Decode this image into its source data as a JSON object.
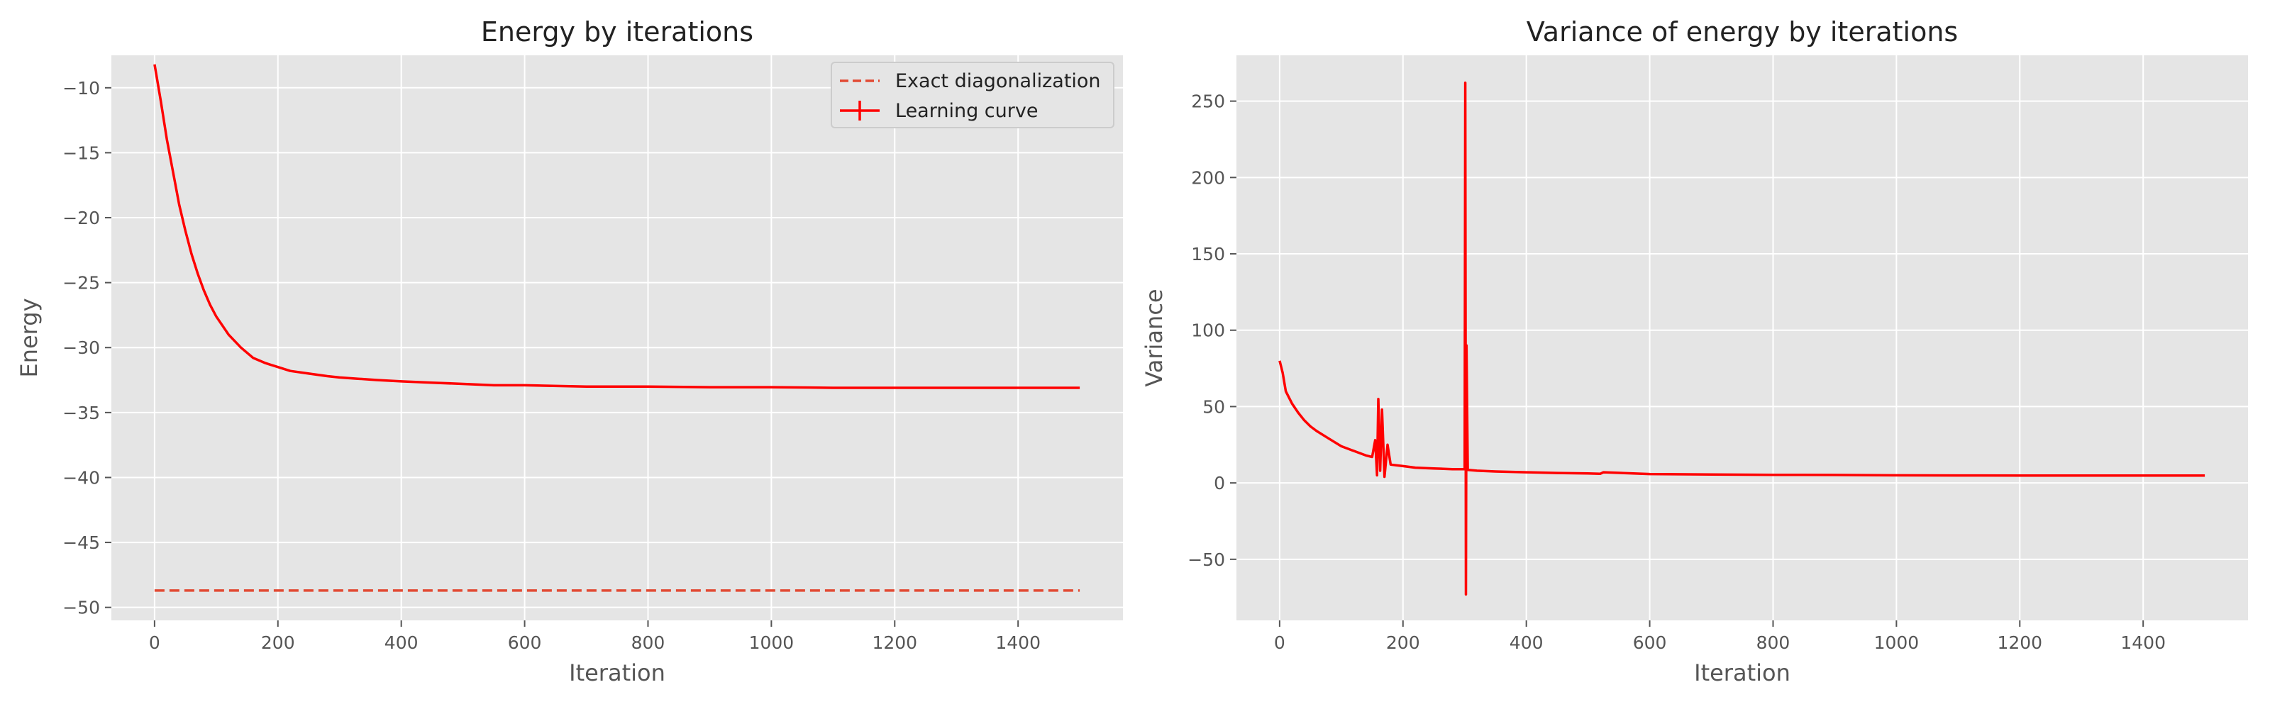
{
  "chart_data": [
    {
      "type": "line",
      "title": "Energy by iterations",
      "xlabel": "Iteration",
      "ylabel": "Energy",
      "xlim": [
        -70,
        1570
      ],
      "ylim": [
        -51,
        -7.5
      ],
      "xticks": [
        0,
        200,
        400,
        600,
        800,
        1000,
        1200,
        1400
      ],
      "yticks": [
        -10,
        -15,
        -20,
        -25,
        -30,
        -35,
        -40,
        -45,
        -50
      ],
      "xtick_labels": [
        "0",
        "200",
        "400",
        "600",
        "800",
        "1000",
        "1200",
        "1400"
      ],
      "ytick_labels": [
        "−10",
        "−15",
        "−20",
        "−25",
        "−30",
        "−35",
        "−40",
        "−45",
        "−50"
      ],
      "grid": true,
      "legend_position": "top-right",
      "series": [
        {
          "name": "Exact diagonalization",
          "style": "dashed",
          "color": "#e24a33",
          "x": [
            0,
            1500
          ],
          "y": [
            -48.7,
            -48.7
          ]
        },
        {
          "name": "Learning curve",
          "style": "solid",
          "color": "#ff0000",
          "x": [
            0,
            10,
            20,
            30,
            40,
            50,
            60,
            70,
            80,
            90,
            100,
            120,
            140,
            160,
            180,
            200,
            220,
            250,
            280,
            300,
            330,
            360,
            400,
            450,
            500,
            550,
            600,
            700,
            800,
            900,
            1000,
            1100,
            1200,
            1300,
            1400,
            1500
          ],
          "y": [
            -8.2,
            -11,
            -14,
            -16.5,
            -19,
            -21,
            -22.8,
            -24.3,
            -25.6,
            -26.7,
            -27.6,
            -29,
            -30,
            -30.8,
            -31.2,
            -31.5,
            -31.8,
            -32,
            -32.2,
            -32.3,
            -32.4,
            -32.5,
            -32.6,
            -32.7,
            -32.8,
            -32.9,
            -32.9,
            -33,
            -33,
            -33.05,
            -33.05,
            -33.1,
            -33.1,
            -33.1,
            -33.1,
            -33.1
          ]
        }
      ]
    },
    {
      "type": "line",
      "title": "Variance of energy by iterations",
      "xlabel": "Iteration",
      "ylabel": "Variance",
      "xlim": [
        -70,
        1570
      ],
      "ylim": [
        -90,
        280
      ],
      "xticks": [
        0,
        200,
        400,
        600,
        800,
        1000,
        1200,
        1400
      ],
      "yticks": [
        250,
        200,
        150,
        100,
        50,
        0,
        -50
      ],
      "xtick_labels": [
        "0",
        "200",
        "400",
        "600",
        "800",
        "1000",
        "1200",
        "1400"
      ],
      "ytick_labels": [
        "250",
        "200",
        "150",
        "100",
        "50",
        "0",
        "−50"
      ],
      "grid": true,
      "series": [
        {
          "name": "",
          "style": "solid",
          "color": "#ff0000",
          "x": [
            0,
            5,
            10,
            20,
            30,
            40,
            50,
            60,
            80,
            100,
            120,
            140,
            150,
            155,
            158,
            160,
            163,
            166,
            170,
            175,
            180,
            200,
            220,
            250,
            280,
            300,
            301,
            302,
            303,
            305,
            320,
            350,
            400,
            450,
            500,
            520,
            525,
            600,
            700,
            800,
            900,
            1000,
            1100,
            1200,
            1300,
            1400,
            1500
          ],
          "y": [
            80,
            72,
            60,
            52,
            46,
            41,
            37,
            34,
            29,
            24,
            21,
            18,
            17,
            28,
            5,
            55,
            8,
            48,
            4,
            25,
            12,
            11,
            10,
            9.5,
            9,
            9,
            262,
            -73,
            90,
            8.5,
            8,
            7.5,
            7,
            6.5,
            6.2,
            6,
            7,
            5.8,
            5.5,
            5.3,
            5.2,
            5,
            4.9,
            4.8,
            4.8,
            4.8,
            4.8
          ]
        }
      ]
    }
  ]
}
